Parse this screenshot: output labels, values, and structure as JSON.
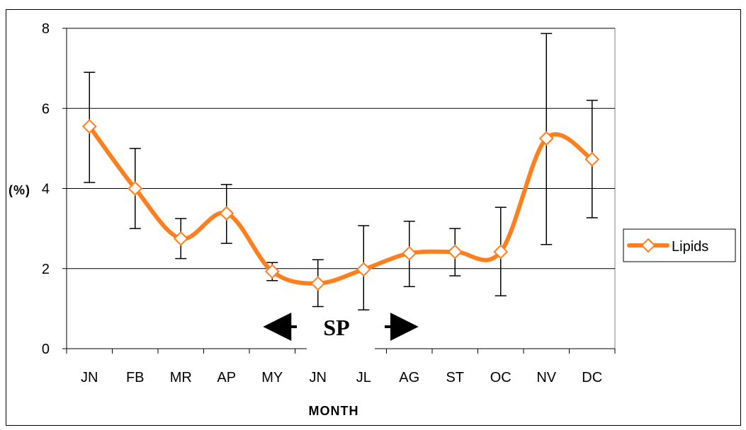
{
  "chart_data": {
    "type": "line",
    "categories": [
      "JN",
      "FB",
      "MR",
      "AP",
      "MY",
      "JN",
      "JL",
      "AG",
      "ST",
      "OC",
      "NV",
      "DC"
    ],
    "series": [
      {
        "name": "Lipids",
        "values": [
          5.55,
          4.0,
          2.75,
          3.38,
          1.93,
          1.63,
          1.98,
          2.38,
          2.42,
          2.42,
          5.25,
          4.73
        ],
        "error_low": [
          4.15,
          3.0,
          2.25,
          2.63,
          1.7,
          1.05,
          0.97,
          1.55,
          1.82,
          1.32,
          2.6,
          3.27
        ],
        "error_high": [
          6.9,
          5.0,
          3.25,
          4.1,
          2.15,
          2.22,
          3.07,
          3.18,
          3.0,
          3.53,
          7.87,
          6.2
        ],
        "color": "#ff7f1f",
        "marker": "diamond-open"
      }
    ],
    "title": "",
    "xlabel": "MONTH",
    "ylabel": "(%)",
    "ylim": [
      0,
      8
    ],
    "yticks": [
      0,
      2,
      4,
      6,
      8
    ],
    "grid": "horizontal",
    "legend": "right",
    "smooth": true,
    "annotation": {
      "text": "SP",
      "arrows": "double-headed",
      "span": [
        "MY",
        "AG"
      ]
    }
  }
}
